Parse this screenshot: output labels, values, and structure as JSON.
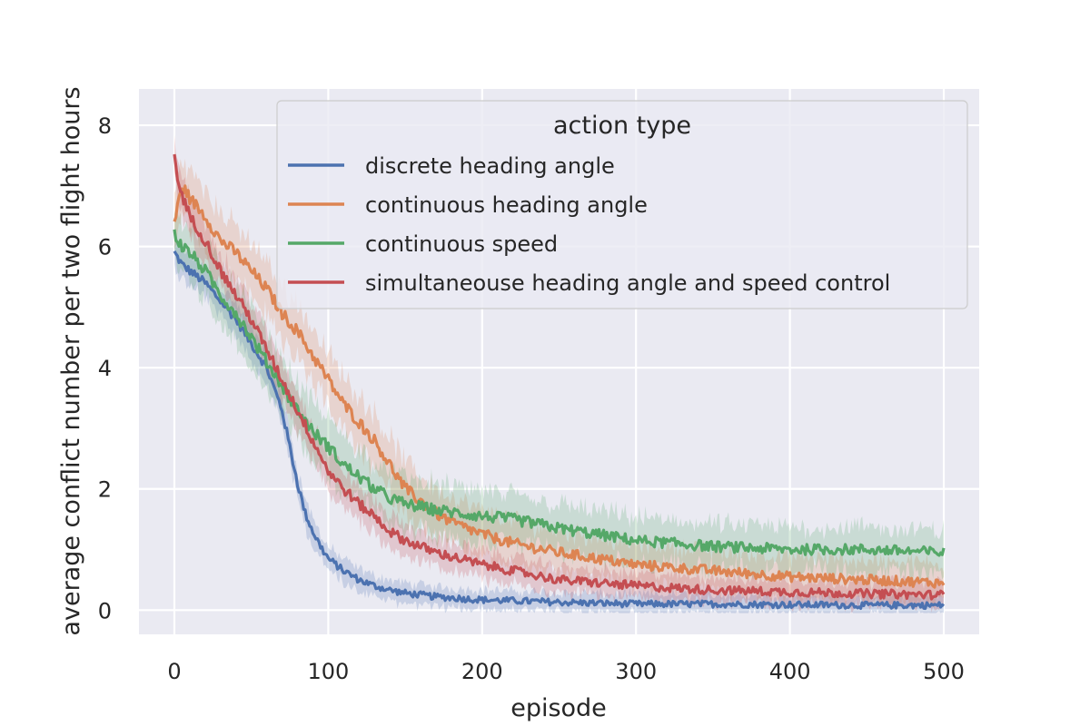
{
  "chart_data": {
    "type": "line",
    "xlabel": "episode",
    "ylabel": "average conflict number per two flight hours",
    "xlim": [
      -23,
      523
    ],
    "ylim": [
      -0.4,
      8.6
    ],
    "xticks": [
      0,
      100,
      200,
      300,
      400,
      500
    ],
    "yticks": [
      0,
      2,
      4,
      6,
      8
    ],
    "grid": true,
    "legend": {
      "title": "action type",
      "placement": "top-right"
    },
    "series": [
      {
        "name": "discrete heading angle",
        "color": "#4c72b0",
        "points": [
          [
            0,
            5.9
          ],
          [
            5,
            5.7
          ],
          [
            10,
            5.6
          ],
          [
            20,
            5.4
          ],
          [
            30,
            5.1
          ],
          [
            40,
            4.8
          ],
          [
            50,
            4.4
          ],
          [
            60,
            4.0
          ],
          [
            70,
            3.3
          ],
          [
            75,
            2.7
          ],
          [
            80,
            2.1
          ],
          [
            85,
            1.6
          ],
          [
            90,
            1.3
          ],
          [
            95,
            1.05
          ],
          [
            100,
            0.85
          ],
          [
            110,
            0.65
          ],
          [
            120,
            0.5
          ],
          [
            130,
            0.4
          ],
          [
            140,
            0.33
          ],
          [
            150,
            0.28
          ],
          [
            170,
            0.22
          ],
          [
            200,
            0.17
          ],
          [
            250,
            0.13
          ],
          [
            300,
            0.1
          ],
          [
            350,
            0.1
          ],
          [
            400,
            0.09
          ],
          [
            450,
            0.08
          ],
          [
            500,
            0.08
          ]
        ],
        "noise": 0.07,
        "band": 0.25
      },
      {
        "name": "continuous heading angle",
        "color": "#dd8452",
        "points": [
          [
            0,
            6.4
          ],
          [
            5,
            7.0
          ],
          [
            10,
            6.8
          ],
          [
            20,
            6.5
          ],
          [
            30,
            6.1
          ],
          [
            40,
            5.9
          ],
          [
            50,
            5.6
          ],
          [
            60,
            5.3
          ],
          [
            70,
            4.9
          ],
          [
            80,
            4.6
          ],
          [
            90,
            4.2
          ],
          [
            100,
            3.8
          ],
          [
            110,
            3.4
          ],
          [
            120,
            3.1
          ],
          [
            130,
            2.8
          ],
          [
            140,
            2.4
          ],
          [
            150,
            2.0
          ],
          [
            160,
            1.8
          ],
          [
            170,
            1.6
          ],
          [
            180,
            1.45
          ],
          [
            200,
            1.25
          ],
          [
            220,
            1.1
          ],
          [
            250,
            0.95
          ],
          [
            300,
            0.75
          ],
          [
            350,
            0.65
          ],
          [
            400,
            0.55
          ],
          [
            450,
            0.5
          ],
          [
            500,
            0.45
          ]
        ],
        "noise": 0.1,
        "band": 0.45
      },
      {
        "name": "continuous speed",
        "color": "#55a868",
        "points": [
          [
            0,
            6.2
          ],
          [
            5,
            6.0
          ],
          [
            10,
            5.9
          ],
          [
            20,
            5.6
          ],
          [
            30,
            5.2
          ],
          [
            40,
            4.9
          ],
          [
            50,
            4.5
          ],
          [
            60,
            4.1
          ],
          [
            70,
            3.7
          ],
          [
            80,
            3.3
          ],
          [
            90,
            2.95
          ],
          [
            100,
            2.7
          ],
          [
            110,
            2.4
          ],
          [
            120,
            2.2
          ],
          [
            130,
            2.0
          ],
          [
            140,
            1.85
          ],
          [
            150,
            1.75
          ],
          [
            170,
            1.65
          ],
          [
            200,
            1.55
          ],
          [
            220,
            1.5
          ],
          [
            250,
            1.35
          ],
          [
            300,
            1.15
          ],
          [
            350,
            1.05
          ],
          [
            400,
            1.0
          ],
          [
            450,
            1.0
          ],
          [
            500,
            0.95
          ]
        ],
        "noise": 0.1,
        "band": 0.45
      },
      {
        "name": "simultaneouse heading angle and speed control",
        "color": "#c44e52",
        "points": [
          [
            0,
            7.5
          ],
          [
            3,
            7.0
          ],
          [
            10,
            6.5
          ],
          [
            20,
            6.1
          ],
          [
            30,
            5.6
          ],
          [
            40,
            5.2
          ],
          [
            50,
            4.8
          ],
          [
            60,
            4.3
          ],
          [
            70,
            3.8
          ],
          [
            80,
            3.3
          ],
          [
            90,
            2.8
          ],
          [
            100,
            2.3
          ],
          [
            110,
            2.0
          ],
          [
            120,
            1.75
          ],
          [
            130,
            1.55
          ],
          [
            140,
            1.3
          ],
          [
            150,
            1.15
          ],
          [
            170,
            0.95
          ],
          [
            200,
            0.75
          ],
          [
            220,
            0.65
          ],
          [
            250,
            0.5
          ],
          [
            300,
            0.4
          ],
          [
            350,
            0.33
          ],
          [
            400,
            0.3
          ],
          [
            450,
            0.27
          ],
          [
            500,
            0.25
          ]
        ],
        "noise": 0.09,
        "band": 0.3
      }
    ]
  }
}
